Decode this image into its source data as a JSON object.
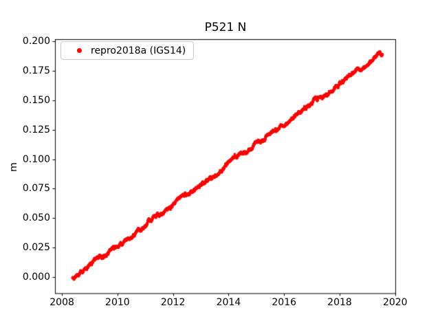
{
  "chart_data": {
    "type": "scatter",
    "title": "P521 N",
    "xlabel": "",
    "ylabel": "m",
    "xlim": [
      2007.75,
      2020.03
    ],
    "ylim": [
      -0.014,
      0.2015
    ],
    "grid": false,
    "background": "#ffffff",
    "axis_color": "#000000",
    "xticks": {
      "values": [
        2008,
        2010,
        2012,
        2014,
        2016,
        2018,
        2020
      ],
      "labels": [
        "2008",
        "2010",
        "2012",
        "2014",
        "2016",
        "2018",
        "2020"
      ]
    },
    "yticks": {
      "values": [
        0.0,
        0.025,
        0.05,
        0.075,
        0.1,
        0.125,
        0.15,
        0.175,
        0.2
      ],
      "labels": [
        "0.000",
        "0.025",
        "0.050",
        "0.075",
        "0.100",
        "0.125",
        "0.150",
        "0.175",
        "0.200"
      ]
    },
    "legend": {
      "position": "upper-left",
      "entries": [
        {
          "label": "repro2018a (IGS14)",
          "color": "#ff0000",
          "marker": "dot"
        }
      ]
    },
    "series": [
      {
        "name": "repro2018a (IGS14)",
        "color": "#ff0000",
        "marker_radius_px": 1.8,
        "cadence_days": 1,
        "x_start": 2008.38,
        "x_end": 2019.545,
        "scatter_noise_m": 0.0015,
        "approx_rate_m_per_yr": 0.0171,
        "trend_points": [
          [
            2008.38,
            -0.001
          ],
          [
            2008.65,
            0.004
          ],
          [
            2008.9,
            0.0085
          ],
          [
            2009.15,
            0.0135
          ],
          [
            2009.4,
            0.017
          ],
          [
            2009.65,
            0.0205
          ],
          [
            2009.9,
            0.0245
          ],
          [
            2010.15,
            0.029
          ],
          [
            2010.4,
            0.033
          ],
          [
            2010.65,
            0.0375
          ],
          [
            2010.9,
            0.042
          ],
          [
            2011.15,
            0.048
          ],
          [
            2011.4,
            0.0515
          ],
          [
            2011.65,
            0.0555
          ],
          [
            2011.9,
            0.0595
          ],
          [
            2012.15,
            0.0645
          ],
          [
            2012.4,
            0.069
          ],
          [
            2012.65,
            0.073
          ],
          [
            2012.9,
            0.077
          ],
          [
            2013.15,
            0.0815
          ],
          [
            2013.4,
            0.085
          ],
          [
            2013.65,
            0.089
          ],
          [
            2013.9,
            0.094
          ],
          [
            2014.15,
            0.0995
          ],
          [
            2014.4,
            0.103
          ],
          [
            2014.65,
            0.107
          ],
          [
            2014.9,
            0.1115
          ],
          [
            2015.15,
            0.1155
          ],
          [
            2015.4,
            0.119
          ],
          [
            2015.65,
            0.1235
          ],
          [
            2015.9,
            0.1275
          ],
          [
            2016.15,
            0.1325
          ],
          [
            2016.4,
            0.138
          ],
          [
            2016.65,
            0.1415
          ],
          [
            2016.9,
            0.1465
          ],
          [
            2017.15,
            0.151
          ],
          [
            2017.4,
            0.153
          ],
          [
            2017.65,
            0.1575
          ],
          [
            2017.9,
            0.162
          ],
          [
            2018.15,
            0.1665
          ],
          [
            2018.4,
            0.171
          ],
          [
            2018.65,
            0.1755
          ],
          [
            2018.9,
            0.179
          ],
          [
            2019.15,
            0.1845
          ],
          [
            2019.4,
            0.1885
          ],
          [
            2019.545,
            0.1905
          ]
        ],
        "outliers": [
          [
            2014.22,
            0.1043
          ]
        ]
      }
    ]
  }
}
